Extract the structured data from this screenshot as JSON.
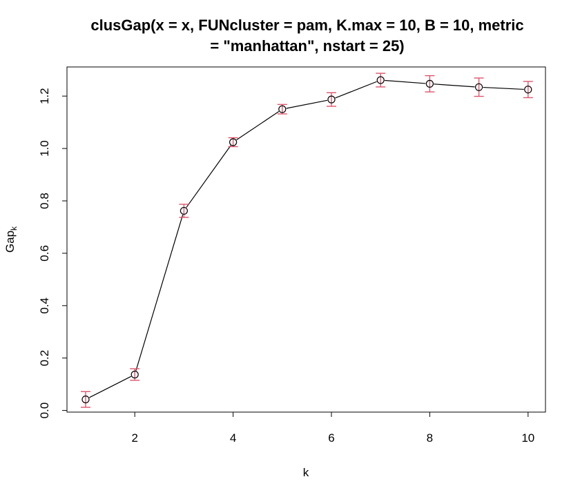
{
  "chart_data": {
    "type": "line",
    "title_line1": "clusGap(x = x, FUNcluster = pam, K.max = 10, B = 10, metric",
    "title_line2": "= \"manhattan\", nstart = 25)",
    "xlabel": "k",
    "ylabel_main": "Gap",
    "ylabel_sub": "k",
    "xlim": [
      1,
      10
    ],
    "ylim": [
      0,
      1.3
    ],
    "x_ticks": [
      "2",
      "4",
      "6",
      "8",
      "10"
    ],
    "y_ticks": [
      "0.0",
      "0.2",
      "0.4",
      "0.6",
      "0.8",
      "1.0",
      "1.2"
    ],
    "x": [
      1,
      2,
      3,
      4,
      5,
      6,
      7,
      8,
      9,
      10
    ],
    "y": [
      0.042,
      0.137,
      0.762,
      1.024,
      1.15,
      1.187,
      1.261,
      1.247,
      1.234,
      1.225
    ],
    "se": [
      0.03,
      0.022,
      0.025,
      0.017,
      0.018,
      0.026,
      0.026,
      0.031,
      0.035,
      0.031
    ],
    "colors": {
      "line": "#000000",
      "errorbar": "#DF536B"
    }
  }
}
